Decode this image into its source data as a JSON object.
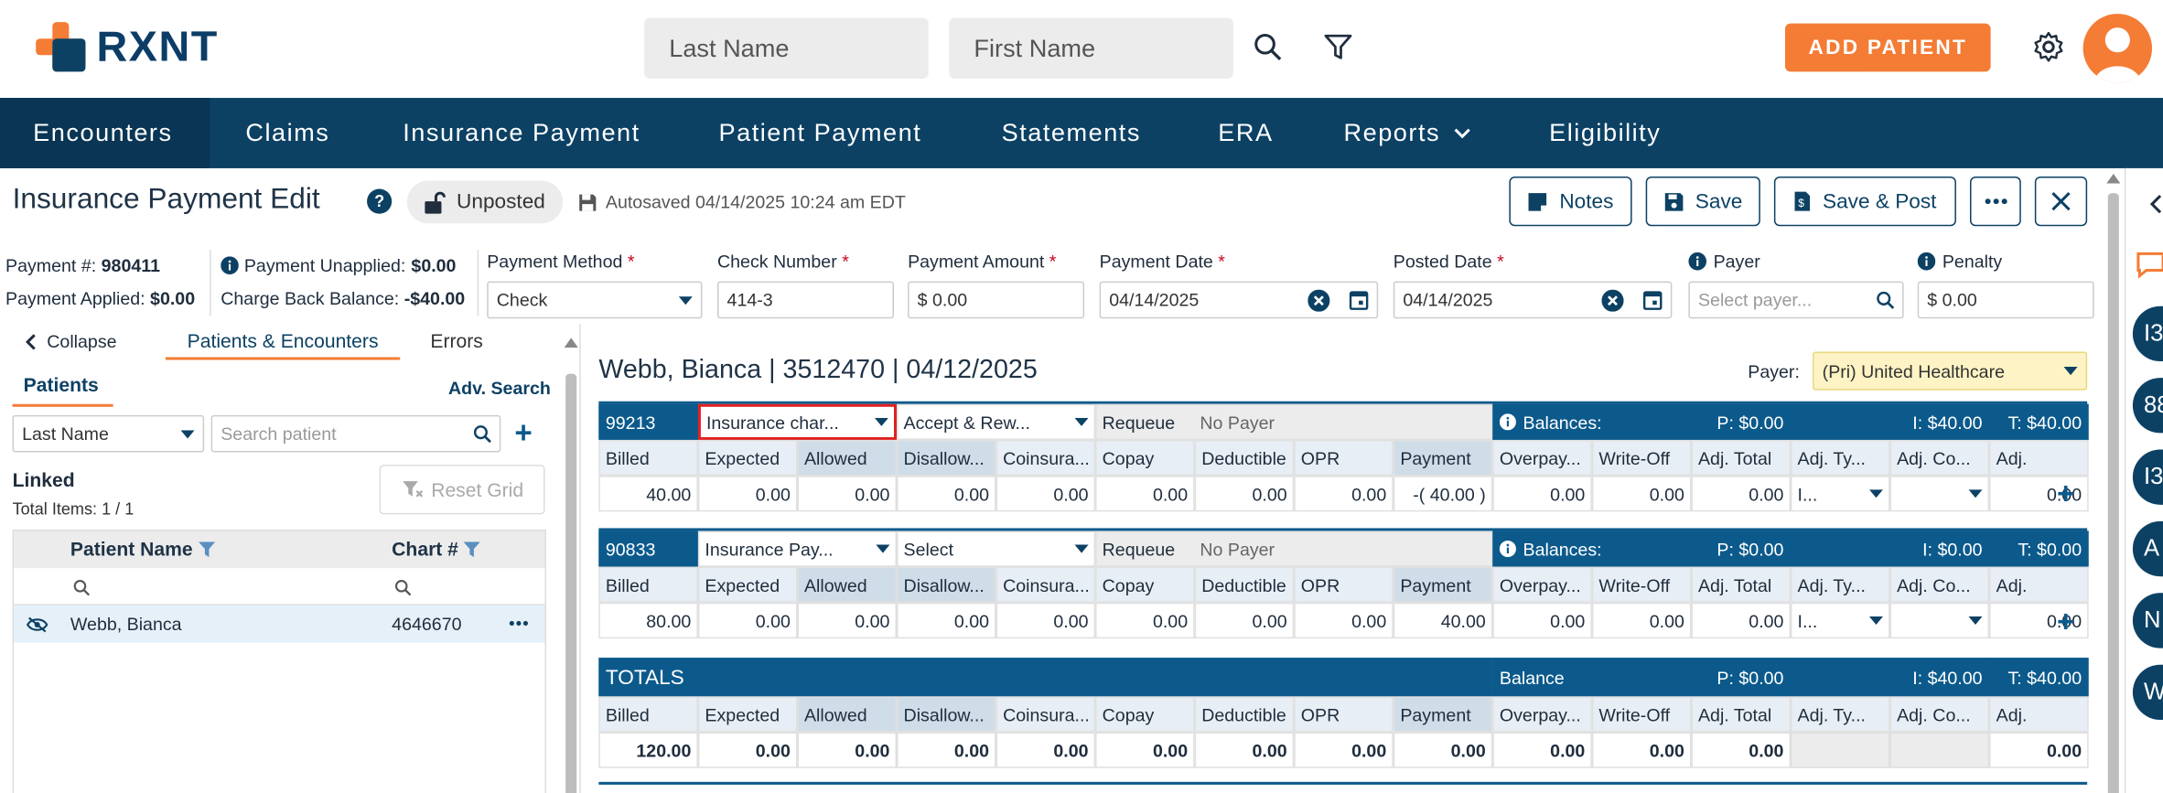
{
  "app": {
    "logo": "RXNT"
  },
  "top_search": {
    "last_name_placeholder": "Last Name",
    "first_name_placeholder": "First Name"
  },
  "add_patient_label": "ADD PATIENT",
  "nav": [
    "Encounters",
    "Claims",
    "Insurance Payment",
    "Patient Payment",
    "Statements",
    "ERA",
    "Reports",
    "Eligibility"
  ],
  "header": {
    "title": "Insurance Payment Edit",
    "status": "Unposted",
    "autosaved": "Autosaved 04/14/2025 10:24 am EDT",
    "buttons": {
      "notes": "Notes",
      "save": "Save",
      "save_post": "Save & Post"
    }
  },
  "payment_summary": {
    "payment_no_label": "Payment #:",
    "payment_no": "980411",
    "applied_label": "Payment Applied:",
    "applied": "$0.00",
    "unapplied_label": "Payment Unapplied:",
    "unapplied": "$0.00",
    "chargeback_label": "Charge Back Balance:",
    "chargeback": "-$40.00"
  },
  "fields": {
    "method_label": "Payment Method",
    "method": "Check",
    "check_label": "Check Number",
    "check": "414-3",
    "amount_label": "Payment Amount",
    "amount": "$ 0.00",
    "paydate_label": "Payment Date",
    "paydate": "04/14/2025",
    "posted_label": "Posted Date",
    "posted": "04/14/2025",
    "payer_label": "Payer",
    "payer_placeholder": "Select payer...",
    "penalty_label": "Penalty",
    "penalty": "$ 0.00"
  },
  "left_panel": {
    "collapse": "Collapse",
    "tab_patients_enc": "Patients & Encounters",
    "tab_errors": "Errors",
    "patients_tab": "Patients",
    "adv_search": "Adv. Search",
    "search_by": "Last Name",
    "search_placeholder": "Search patient",
    "linked": "Linked",
    "total_items": "Total Items: 1 / 1",
    "reset_grid": "Reset Grid",
    "col_name": "Patient Name",
    "col_chart": "Chart #",
    "rows": [
      {
        "name": "Webb, Bianca",
        "chart": "4646670"
      }
    ]
  },
  "encounter": {
    "title": "Webb, Bianca | 3512470 | 04/12/2025",
    "payer_label": "Payer:",
    "payer": "(Pri) United Healthcare"
  },
  "col_headers": [
    "Billed",
    "Expected",
    "Allowed",
    "Disallow...",
    "Coinsura...",
    "Copay",
    "Deductible",
    "OPR",
    "Payment",
    "Overpay...",
    "Write-Off",
    "Adj. Total",
    "Adj. Ty...",
    "Adj. Co...",
    "Adj."
  ],
  "lines": [
    {
      "code": "99213",
      "dd1": "Insurance char...",
      "dd2": "Accept & Rew...",
      "requeue": "Requeue",
      "no_payer": "No Payer",
      "balances": "Balances:",
      "p": "P: $0.00",
      "i": "I: $40.00",
      "t": "T: $40.00",
      "values": [
        "40.00",
        "0.00",
        "0.00",
        "0.00",
        "0.00",
        "0.00",
        "0.00",
        "0.00",
        "-( 40.00 )",
        "0.00",
        "0.00",
        "0.00",
        "I...",
        "",
        "0.00"
      ]
    },
    {
      "code": "90833",
      "dd1": "Insurance Pay...",
      "dd2": "Select",
      "requeue": "Requeue",
      "no_payer": "No Payer",
      "balances": "Balances:",
      "p": "P: $0.00",
      "i": "I: $0.00",
      "t": "T: $0.00",
      "values": [
        "80.00",
        "0.00",
        "0.00",
        "0.00",
        "0.00",
        "0.00",
        "0.00",
        "0.00",
        "40.00",
        "0.00",
        "0.00",
        "0.00",
        "I...",
        "",
        "0.00"
      ]
    }
  ],
  "totals": {
    "label": "TOTALS",
    "balance": "Balance",
    "p": "P: $0.00",
    "i": "I: $40.00",
    "t": "T: $40.00",
    "values": [
      "120.00",
      "0.00",
      "0.00",
      "0.00",
      "0.00",
      "0.00",
      "0.00",
      "0.00",
      "0.00",
      "0.00",
      "0.00",
      "0.00",
      "",
      "",
      "0.00"
    ]
  },
  "side_tabs": [
    "I3",
    "88",
    "I3",
    "A",
    "N",
    "W"
  ],
  "colors": {
    "brand": "#0c4164",
    "accent": "#f47c35",
    "grid_dark": "#0c5a8c"
  }
}
